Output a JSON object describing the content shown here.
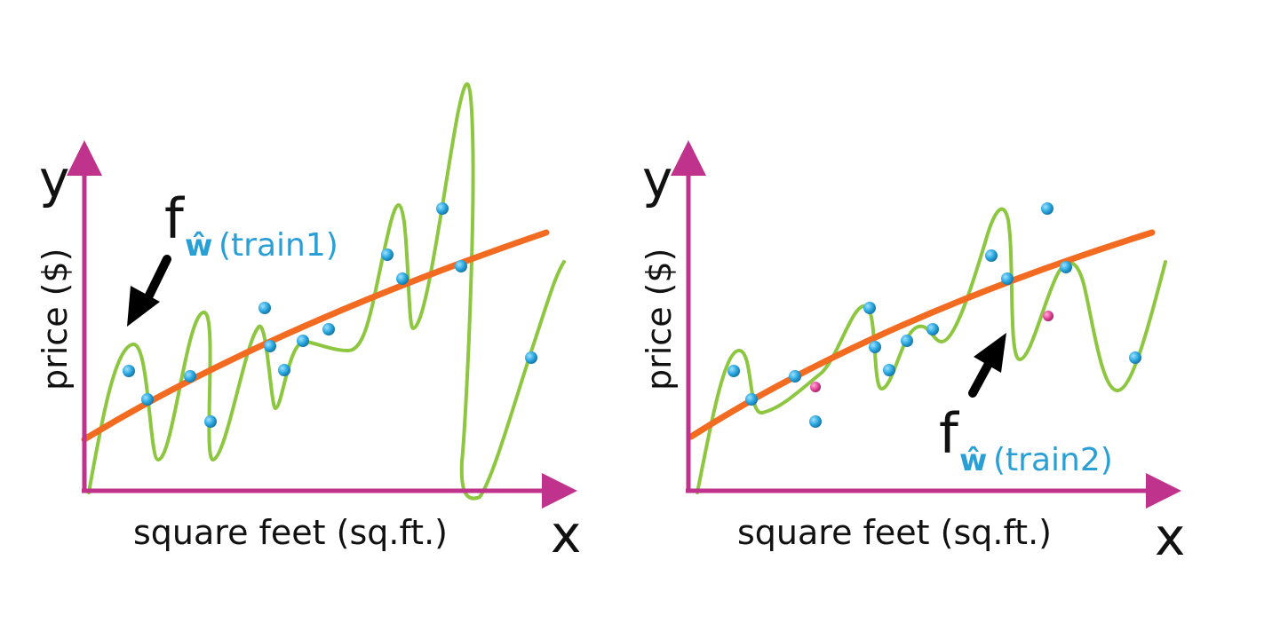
{
  "panels": [
    {
      "y_letter": "y",
      "x_letter": "x",
      "y_label": "price ($)",
      "x_label": "square feet (sq.ft.)",
      "fit_label": {
        "f": "f",
        "w_hat": "ŵ",
        "subscript": "(train1)"
      }
    },
    {
      "y_letter": "y",
      "x_letter": "x",
      "y_label": "price ($)",
      "x_label": "square feet (sq.ft.)",
      "fit_label": {
        "f": "f",
        "w_hat": "ŵ",
        "subscript": "(train2)"
      }
    }
  ],
  "colors": {
    "axis": "#c0338c",
    "overfit_curve": "#8dc63f",
    "simple_curve": "#f26b21",
    "train_point": "#29a8e0",
    "test_point": "#e8489a",
    "arrow": "#000000"
  }
}
